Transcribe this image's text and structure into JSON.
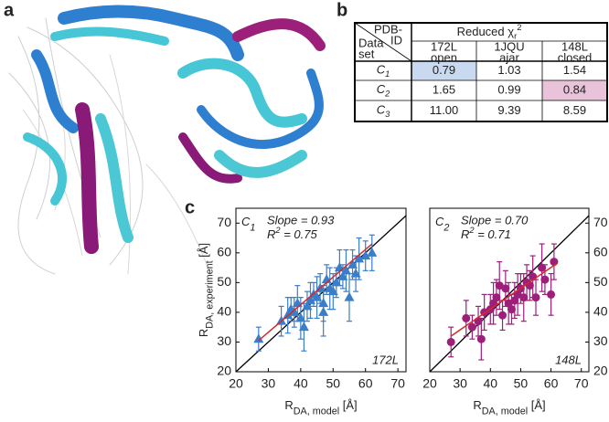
{
  "panel_labels": [
    "a",
    "b",
    "c"
  ],
  "table": {
    "corner_top": [
      "PDB-",
      "ID"
    ],
    "corner_bottom": [
      "Data",
      "set"
    ],
    "header": {
      "main": "Reduced χ",
      "sub": "r",
      "sup": "2"
    },
    "columns": [
      {
        "lines": [
          "172L",
          "open"
        ],
        "color": "#3a7dc9"
      },
      {
        "lines": [
          "1JQU",
          "ajar"
        ],
        "color": "#45b8dc"
      },
      {
        "lines": [
          "148L",
          "closed"
        ],
        "color": "#9c1f7a"
      }
    ],
    "rows": [
      {
        "label": {
          "main": "C",
          "sub": "1"
        },
        "color": "#3a7dc9",
        "cells": [
          "0.79",
          "1.03",
          "1.54"
        ],
        "cell_fills": [
          "#c9d9f0",
          null,
          null
        ]
      },
      {
        "label": {
          "main": "C",
          "sub": "2"
        },
        "color": "#9c1f7a",
        "cells": [
          "1.65",
          "0.99",
          "0.84"
        ],
        "cell_fills": [
          null,
          null,
          "#e8c3da"
        ]
      },
      {
        "label": {
          "main": "C",
          "sub": "3"
        },
        "color": "#8a8a2a",
        "cells": [
          "11.00",
          "9.39",
          "8.59"
        ],
        "cell_fills": [
          null,
          null,
          null
        ]
      }
    ]
  },
  "chart_data": [
    {
      "type": "scatter",
      "marker": "triangle",
      "color": "#3a7dc9",
      "label": {
        "main": "C",
        "sub": "1"
      },
      "structure": "172L",
      "annotation_color": "#d42a2a",
      "slope": "Slope = 0.93",
      "r2": {
        "main": "R",
        "sup": "2",
        "rest": " = 0.75"
      },
      "x": [
        27,
        34,
        36,
        37,
        38,
        39,
        40,
        41,
        42,
        43,
        44,
        45,
        46,
        47,
        47,
        48,
        49,
        50,
        51,
        52,
        53,
        54,
        55,
        56,
        57,
        58,
        60,
        62
      ],
      "y": [
        31,
        37,
        39,
        41,
        40,
        43,
        38,
        35,
        42,
        44,
        46,
        45,
        48,
        43,
        40,
        51,
        48,
        47,
        50,
        55,
        52,
        54,
        45,
        56,
        53,
        58,
        59,
        60
      ],
      "errors": [
        4,
        5,
        6,
        4,
        5,
        6,
        7,
        8,
        5,
        6,
        4,
        7,
        5,
        6,
        8,
        5,
        7,
        6,
        5,
        6,
        4,
        7,
        8,
        5,
        6,
        7,
        5,
        6
      ],
      "fit": {
        "x": [
          27,
          62
        ],
        "y": [
          30.5,
          63
        ],
        "color": "#d42a2a"
      },
      "xlim": [
        20,
        72.5
      ],
      "ylim": [
        20,
        75
      ],
      "xticks": [
        20,
        30,
        40,
        50,
        60,
        70
      ],
      "yticks": [
        20,
        30,
        40,
        50,
        60,
        70
      ],
      "xlabel": {
        "main": "R",
        "sub": "DA, model",
        "rest": " [Å]"
      },
      "ylabel": {
        "main": "R",
        "sub": "DA, experiment",
        "rest": " [Å]"
      },
      "yaxis_side": "left"
    },
    {
      "type": "scatter",
      "marker": "circle",
      "color": "#9c1f7a",
      "label": {
        "main": "C",
        "sub": "2"
      },
      "structure": "148L",
      "annotation_color": "#d42a2a",
      "slope": "Slope = 0.70",
      "r2": {
        "main": "R",
        "sup": "2",
        "rest": " = 0.71"
      },
      "x": [
        27,
        32,
        34,
        36,
        37,
        38,
        40,
        41,
        42,
        43,
        44,
        45,
        46,
        47,
        48,
        49,
        50,
        51,
        52,
        53,
        54,
        55,
        57,
        58,
        60,
        61
      ],
      "y": [
        30,
        38,
        35,
        37,
        31,
        40,
        41,
        43,
        45,
        49,
        39,
        48,
        43,
        41,
        44,
        46,
        48,
        45,
        50,
        49,
        52,
        45,
        55,
        51,
        46,
        57
      ],
      "errors": [
        5,
        6,
        4,
        5,
        7,
        6,
        5,
        7,
        6,
        8,
        5,
        6,
        7,
        5,
        6,
        7,
        5,
        8,
        6,
        5,
        7,
        6,
        8,
        5,
        7,
        6
      ],
      "fit": {
        "x": [
          27,
          62
        ],
        "y": [
          32,
          56.5
        ],
        "color": "#d42a2a"
      },
      "xlim": [
        20,
        72.5
      ],
      "ylim": [
        20,
        75
      ],
      "xticks": [
        20,
        30,
        40,
        50,
        60,
        70
      ],
      "yticks": [
        20,
        30,
        40,
        50,
        60,
        70
      ],
      "xlabel": {
        "main": "R",
        "sub": "DA, model",
        "rest": " [Å]"
      },
      "yaxis_side": "right"
    }
  ]
}
